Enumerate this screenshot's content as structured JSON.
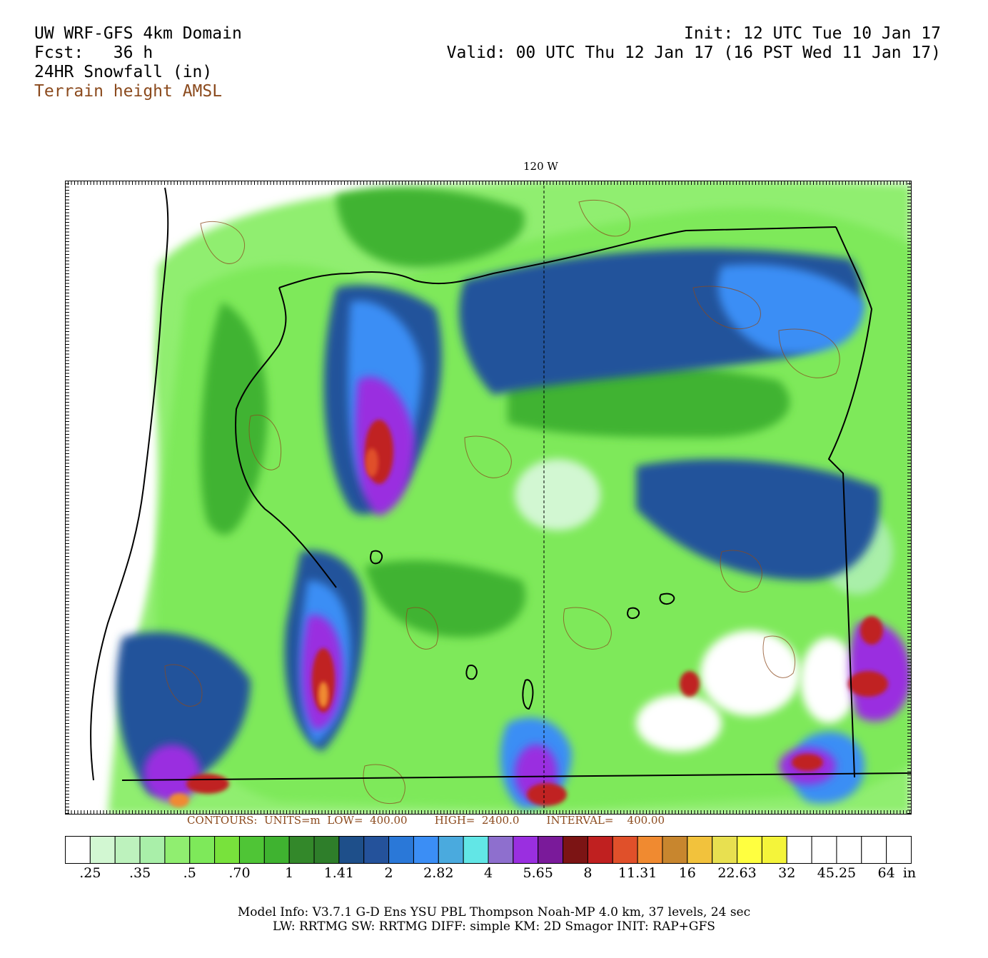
{
  "header": {
    "domain_title": "UW WRF-GFS 4km Domain",
    "forecast_label": "Fcst:",
    "forecast_hours": "36 h",
    "field_name": "24HR Snowfall (in)",
    "overlay_name": "Terrain height AMSL",
    "init_line": "Init: 12 UTC Tue 10 Jan 17",
    "valid_line": "Valid: 00 UTC Thu 12 Jan 17 (16 PST Wed 11 Jan 17)"
  },
  "map": {
    "longitude_label": "120 W",
    "contour_line": "CONTOURS:  UNITS=m  LOW=  400.00        HIGH=  2400.0        INTERVAL=    400.00"
  },
  "colorbar": {
    "unit": "in",
    "colors": [
      "#ffffff",
      "#d2f7d2",
      "#bdf2bd",
      "#a9efa9",
      "#90ee70",
      "#7ee95a",
      "#78e23c",
      "#4fc536",
      "#3fb330",
      "#33882a",
      "#2e7e2a",
      "#1e4f8a",
      "#24529b",
      "#2a78d8",
      "#3b8ef5",
      "#4aaade",
      "#62e6e6",
      "#8e6fce",
      "#9a2fe0",
      "#7a1a9a",
      "#7c1414",
      "#c02020",
      "#e0502a",
      "#f08a30",
      "#c8862e",
      "#f2c23c",
      "#e8e050",
      "#ffff40",
      "#f4f43a",
      "#ffffff",
      "#ffffff",
      "#ffffff",
      "#ffffff",
      "#ffffff"
    ],
    "labels": [
      ".25",
      ".35",
      ".5",
      ".70",
      "1",
      "1.41",
      "2",
      "2.82",
      "4",
      "5.65",
      "8",
      "11.31",
      "16",
      "22.63",
      "32",
      "45.25",
      "64"
    ]
  },
  "model_info": {
    "line1": "Model Info: V3.7.1    G-D Ens YSU PBL  Thompson     Noah-MP   4.0 km,  37 levels,    24 sec",
    "line2": "LW: RRTMG SW: RRTMG     DIFF: simple KM: 2D Smagor INIT: RAP+GFS"
  }
}
